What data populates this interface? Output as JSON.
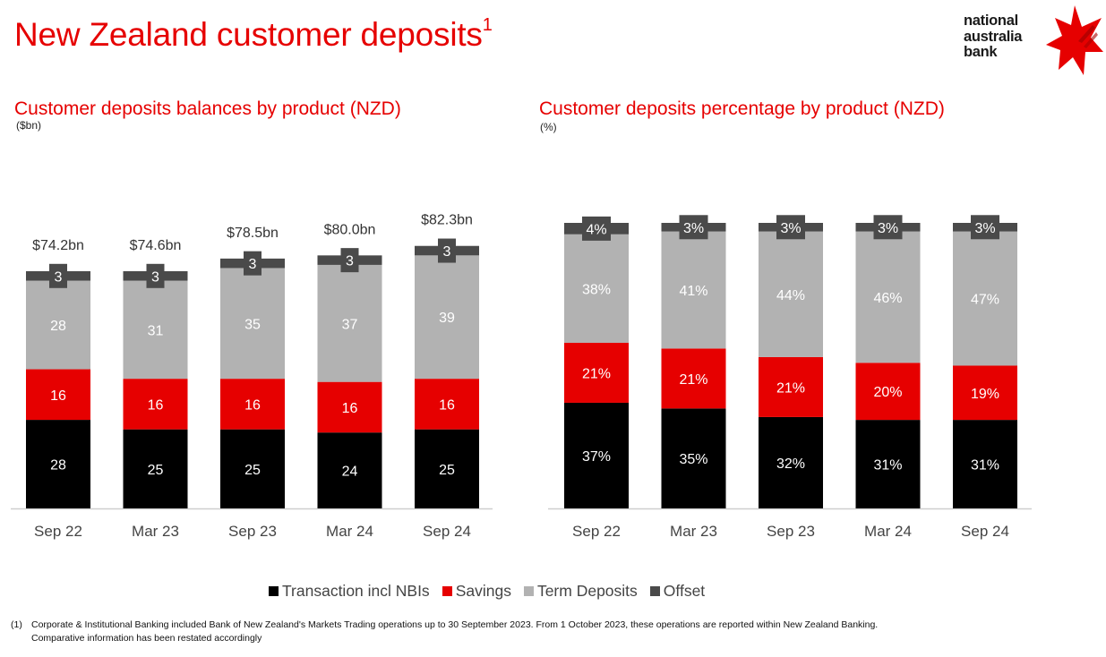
{
  "page": {
    "title": "New Zealand customer deposits",
    "title_footnote_marker": "1",
    "logo": {
      "lines": [
        "national",
        "australia",
        "bank"
      ],
      "icon": "nab-star-icon",
      "color": "#e60000"
    },
    "legend": [
      {
        "label": "Transaction incl NBIs",
        "color": "#000000"
      },
      {
        "label": "Savings",
        "color": "#e60000"
      },
      {
        "label": "Term Deposits",
        "color": "#b2b2b2"
      },
      {
        "label": "Offset",
        "color": "#4a4a4a"
      }
    ],
    "footnote": {
      "marker": "(1)",
      "line1": "Corporate & Institutional Banking included Bank of New Zealand's Markets Trading operations up to 30 September 2023. From 1 October 2023, these operations are reported within New Zealand Banking.",
      "line2": "Comparative information has been restated accordingly"
    }
  },
  "chart_data": [
    {
      "type": "bar",
      "stacked": true,
      "title": "Customer deposits balances by product (NZD)",
      "unit_label": "($bn)",
      "xlabel": "",
      "ylabel": "",
      "categories": [
        "Sep 22",
        "Mar 23",
        "Sep 23",
        "Mar 24",
        "Sep 24"
      ],
      "series": [
        {
          "name": "Transaction incl NBIs",
          "color": "#000000",
          "values": [
            28,
            25,
            25,
            24,
            25
          ]
        },
        {
          "name": "Savings",
          "color": "#e60000",
          "values": [
            16,
            16,
            16,
            16,
            16
          ]
        },
        {
          "name": "Term Deposits",
          "color": "#b2b2b2",
          "values": [
            28,
            31,
            35,
            37,
            39
          ]
        },
        {
          "name": "Offset",
          "color": "#4a4a4a",
          "values": [
            3,
            3,
            3,
            3,
            3
          ]
        }
      ],
      "totals": [
        "$74.2bn",
        "$74.6bn",
        "$78.5bn",
        "$80.0bn",
        "$82.3bn"
      ],
      "total_values": [
        74.2,
        74.6,
        78.5,
        80.0,
        82.3
      ],
      "ylim": [
        0,
        90
      ],
      "grid": false,
      "legend": "bottom-center"
    },
    {
      "type": "bar",
      "stacked": true,
      "title": "Customer deposits percentage by product (NZD)",
      "unit_label": "(%)",
      "xlabel": "",
      "ylabel": "",
      "categories": [
        "Sep 22",
        "Mar 23",
        "Sep 23",
        "Mar 24",
        "Sep 24"
      ],
      "series": [
        {
          "name": "Transaction incl NBIs",
          "color": "#000000",
          "values": [
            37,
            35,
            32,
            31,
            31
          ]
        },
        {
          "name": "Savings",
          "color": "#e60000",
          "values": [
            21,
            21,
            21,
            20,
            19
          ]
        },
        {
          "name": "Term Deposits",
          "color": "#b2b2b2",
          "values": [
            38,
            41,
            44,
            46,
            47
          ]
        },
        {
          "name": "Offset",
          "color": "#4a4a4a",
          "values": [
            4,
            3,
            3,
            3,
            3
          ]
        }
      ],
      "value_suffix": "%",
      "ylim": [
        0,
        100
      ],
      "grid": false,
      "legend": "bottom-center"
    }
  ]
}
